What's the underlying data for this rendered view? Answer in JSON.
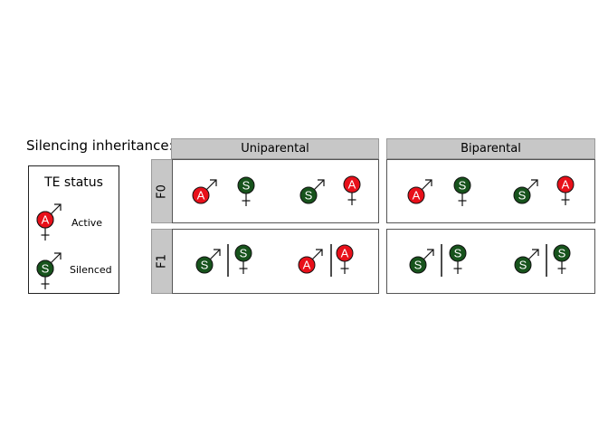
{
  "title": "Silencing inheritance:",
  "columns": [
    "Uniparental",
    "Biparental"
  ],
  "rows": [
    "F0",
    "F1"
  ],
  "legend": {
    "title": "TE status",
    "items": [
      {
        "letter": "A",
        "label": "Active",
        "color": "#e8101a"
      },
      {
        "letter": "S",
        "label": "Silenced",
        "color": "#17531c"
      }
    ]
  },
  "colors": {
    "active": "#e8101a",
    "silenced": "#17531c",
    "header_bg": "#c7c7c7"
  },
  "cells": [
    {
      "row": "F0",
      "column": "Uniparental",
      "male": "A",
      "female": "S",
      "divider": false
    },
    {
      "row": "F0",
      "column": "Uniparental",
      "male": "S",
      "female": "A",
      "divider": false
    },
    {
      "row": "F0",
      "column": "Biparental",
      "male": "A",
      "female": "S",
      "divider": false
    },
    {
      "row": "F0",
      "column": "Biparental",
      "male": "S",
      "female": "A",
      "divider": false
    },
    {
      "row": "F1",
      "column": "Uniparental",
      "male": "S",
      "female": "S",
      "divider": true
    },
    {
      "row": "F1",
      "column": "Uniparental",
      "male": "A",
      "female": "A",
      "divider": true
    },
    {
      "row": "F1",
      "column": "Biparental",
      "male": "S",
      "female": "S",
      "divider": true
    },
    {
      "row": "F1",
      "column": "Biparental",
      "male": "S",
      "female": "S",
      "divider": true
    }
  ]
}
